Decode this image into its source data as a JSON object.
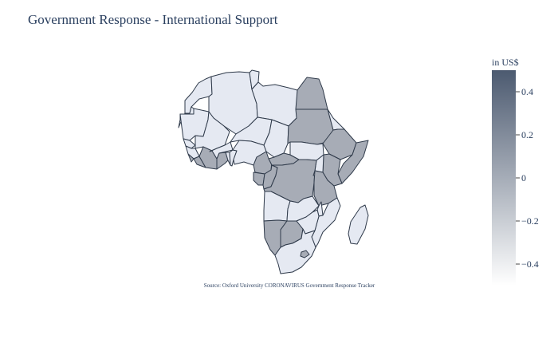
{
  "chart_data": {
    "type": "choropleth",
    "title": "Government Response - International Support",
    "annotation": "Source:  Oxford University CORONAVIRUS Government Response Tracker",
    "colorbar": {
      "title": "in US$",
      "range": [
        -0.5,
        0.5
      ],
      "ticks": [
        0.4,
        0.2,
        0,
        -0.2,
        -0.4
      ],
      "tick_labels": [
        "0.4",
        "0.2",
        "0",
        "−0.2",
        "−0.4"
      ],
      "colorscale": [
        [
          "#ffffff",
          0
        ],
        [
          "#4c5a70",
          1
        ]
      ]
    },
    "colors": {
      "zero": "#a7acb6",
      "low": "#e5e9f2",
      "outline": "#2f3a4a",
      "text": "#2a3f5f"
    },
    "countries": [
      {
        "name": "Morocco",
        "value": -0.5
      },
      {
        "name": "Western Sahara",
        "value": -0.5
      },
      {
        "name": "Algeria",
        "value": -0.5
      },
      {
        "name": "Tunisia",
        "value": -0.5
      },
      {
        "name": "Libya",
        "value": -0.5
      },
      {
        "name": "Egypt",
        "value": 0
      },
      {
        "name": "Mauritania",
        "value": -0.5
      },
      {
        "name": "Mali",
        "value": -0.5
      },
      {
        "name": "Niger",
        "value": -0.5
      },
      {
        "name": "Chad",
        "value": -0.5
      },
      {
        "name": "Sudan",
        "value": 0
      },
      {
        "name": "Eritrea",
        "value": -0.5
      },
      {
        "name": "Ethiopia",
        "value": 0
      },
      {
        "name": "Somalia",
        "value": 0
      },
      {
        "name": "Senegal",
        "value": -0.5
      },
      {
        "name": "Guinea",
        "value": -0.5
      },
      {
        "name": "Sierra Leone",
        "value": 0
      },
      {
        "name": "Liberia",
        "value": 0
      },
      {
        "name": "Côte d'Ivoire",
        "value": 0
      },
      {
        "name": "Burkina Faso",
        "value": -0.5
      },
      {
        "name": "Ghana",
        "value": 0
      },
      {
        "name": "Togo",
        "value": -0.5
      },
      {
        "name": "Benin",
        "value": -0.5
      },
      {
        "name": "Nigeria",
        "value": -0.5
      },
      {
        "name": "Cameroon",
        "value": 0
      },
      {
        "name": "Central African Republic",
        "value": 0
      },
      {
        "name": "South Sudan",
        "value": -0.5
      },
      {
        "name": "Kenya",
        "value": 0
      },
      {
        "name": "Uganda",
        "value": -0.5
      },
      {
        "name": "Gabon",
        "value": 0
      },
      {
        "name": "Congo",
        "value": 0
      },
      {
        "name": "DR Congo",
        "value": 0
      },
      {
        "name": "Rwanda",
        "value": -0.5
      },
      {
        "name": "Tanzania",
        "value": 0
      },
      {
        "name": "Angola",
        "value": -0.5
      },
      {
        "name": "Zambia",
        "value": -0.5
      },
      {
        "name": "Malawi",
        "value": -0.5
      },
      {
        "name": "Mozambique",
        "value": -0.5
      },
      {
        "name": "Namibia",
        "value": 0
      },
      {
        "name": "Botswana",
        "value": 0
      },
      {
        "name": "Zimbabwe",
        "value": -0.5
      },
      {
        "name": "South Africa",
        "value": -0.5
      },
      {
        "name": "Lesotho",
        "value": 0
      },
      {
        "name": "Madagascar",
        "value": -0.5
      }
    ]
  }
}
